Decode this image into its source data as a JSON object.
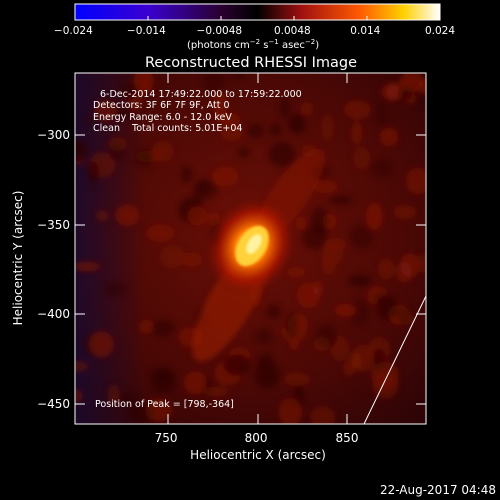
{
  "colorbar": {
    "ticks": [
      "−0.024",
      "−0.014",
      "−0.0048",
      "0.0048",
      "0.014",
      "0.024"
    ],
    "unit_main": "(photons cm",
    "unit_exp1": "−2",
    "unit_mid": " s",
    "unit_exp2": "−1",
    "unit_mid2": " asec",
    "unit_exp3": "−2",
    "unit_end": ")"
  },
  "title": "Reconstructed RHESSI Image",
  "info": {
    "time_range": "6-Dec-2014 17:49:22.000 to 17:59:22.000",
    "detectors": "Detectors: 3F 6F 7F 9F, Att 0",
    "energy": "Energy Range: 6.0 - 12.0 keV",
    "clean": "Clean    Total counts: 5.01E+04"
  },
  "peak_label": "Position of Peak = [798,-364]",
  "axes": {
    "xlabel": "Heliocentric X (arcsec)",
    "ylabel": "Heliocentric Y (arcsec)",
    "xticks": [
      "750",
      "800",
      "850"
    ],
    "yticks": [
      "−300",
      "−350",
      "−400",
      "−450"
    ]
  },
  "timestamp": "22-Aug-2017 04:48",
  "colors": {
    "limb_line": "#ffffff",
    "source": "#ffd23a"
  }
}
